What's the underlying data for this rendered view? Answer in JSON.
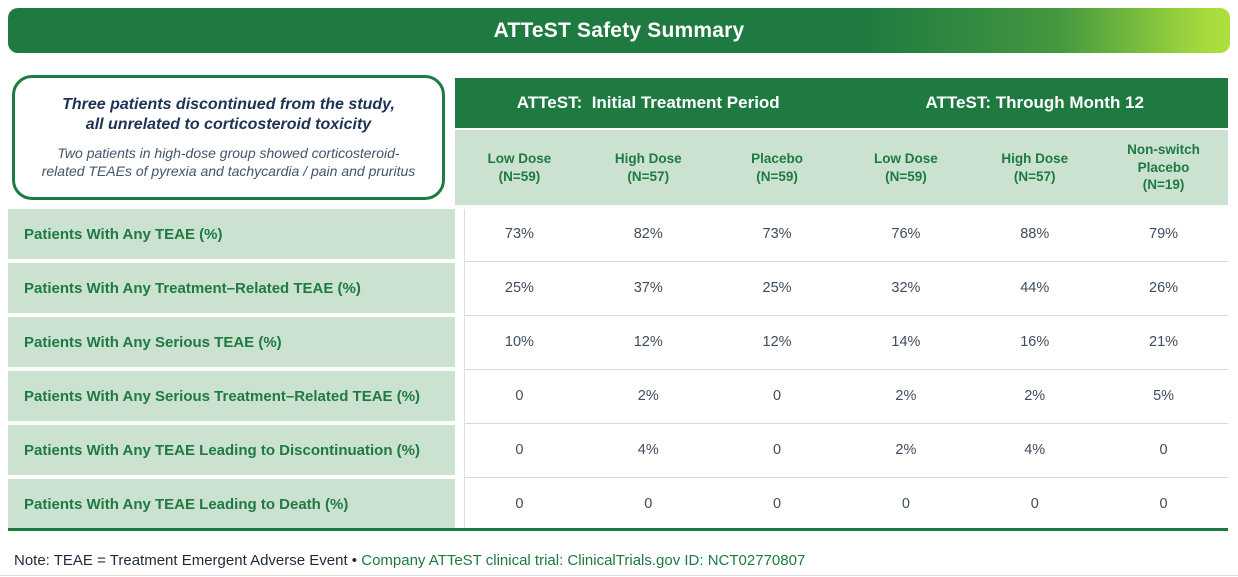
{
  "title": "ATTeST Safety Summary",
  "colors": {
    "dark_green": "#1e7a41",
    "lime_green": "#a9dc3b",
    "light_green_bg": "#cbe2d1",
    "navy_heading": "#1d3353",
    "body_text": "#3f4c5d"
  },
  "callout": {
    "heading_line1": "Three patients discontinued from the study,",
    "heading_line2": "all unrelated to corticosteroid toxicity",
    "subtext_line1": "Two patients in high-dose group showed corticosteroid-",
    "subtext_line2": "related TEAEs of pyrexia and tachycardia / pain and pruritus"
  },
  "table": {
    "group_headers": [
      "ATTeST:  Initial Treatment Period",
      "ATTeST: Through Month 12"
    ],
    "columns": [
      {
        "label": "Low Dose",
        "n": "(N=59)"
      },
      {
        "label": "High Dose",
        "n": "(N=57)"
      },
      {
        "label": "Placebo",
        "n": "(N=59)"
      },
      {
        "label": "Low Dose",
        "n": "(N=59)"
      },
      {
        "label": "High Dose",
        "n": "(N=57)"
      },
      {
        "label": "Non-switch Placebo",
        "n": "(N=19)"
      }
    ],
    "rows": [
      {
        "label": "Patients With Any TEAE (%)",
        "values": [
          "73%",
          "82%",
          "73%",
          "76%",
          "88%",
          "79%"
        ]
      },
      {
        "label": "Patients With Any Treatment–Related TEAE (%)",
        "values": [
          "25%",
          "37%",
          "25%",
          "32%",
          "44%",
          "26%"
        ]
      },
      {
        "label": "Patients With Any Serious TEAE (%)",
        "values": [
          "10%",
          "12%",
          "12%",
          "14%",
          "16%",
          "21%"
        ]
      },
      {
        "label": "Patients With Any Serious Treatment–Related TEAE (%)",
        "values": [
          "0",
          "2%",
          "0",
          "2%",
          "2%",
          "5%"
        ]
      },
      {
        "label": "Patients With Any TEAE Leading to Discontinuation (%)",
        "values": [
          "0",
          "4%",
          "0",
          "2%",
          "4%",
          "0"
        ]
      },
      {
        "label": "Patients With Any TEAE Leading to Death (%)",
        "values": [
          "0",
          "0",
          "0",
          "0",
          "0",
          "0"
        ]
      }
    ]
  },
  "footnote": {
    "note": "Note: TEAE = Treatment Emergent Adverse Event • ",
    "link": "Company ATTeST clinical trial: ClinicalTrials.gov ID: NCT02770807"
  }
}
